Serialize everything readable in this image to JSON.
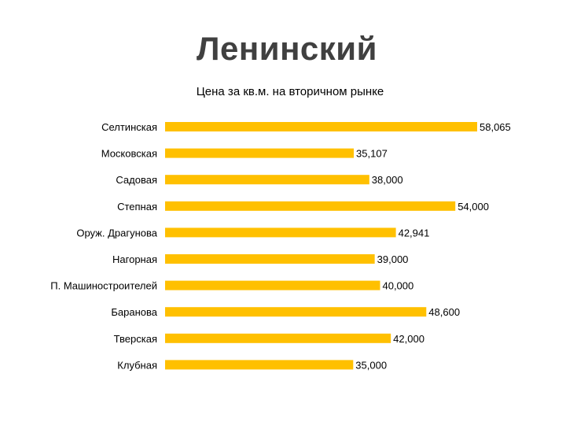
{
  "slide": {
    "title": "Ленинский"
  },
  "chart_data": {
    "type": "bar",
    "orientation": "horizontal",
    "title": "Цена за кв.м. на вторичном рынке",
    "xlabel": "",
    "ylabel": "",
    "categories": [
      "Селтинская",
      "Московская",
      "Садовая",
      "Степная",
      "Оруж. Драгунова",
      "Нагорная",
      "П. Машиностроителей",
      "Баранова",
      "Тверская",
      "Клубная"
    ],
    "values": [
      58065,
      35107,
      38000,
      54000,
      42941,
      39000,
      40000,
      48600,
      42000,
      35000
    ],
    "value_labels": [
      "58,065",
      "35,107",
      "38,000",
      "54,000",
      "42,941",
      "39,000",
      "40,000",
      "48,600",
      "42,000",
      "35,000"
    ],
    "xlim": [
      0,
      58065
    ],
    "grid": false,
    "legend": "none",
    "bar_color": "#FFC000",
    "text_color": "#000000",
    "title_color": "#404040"
  }
}
